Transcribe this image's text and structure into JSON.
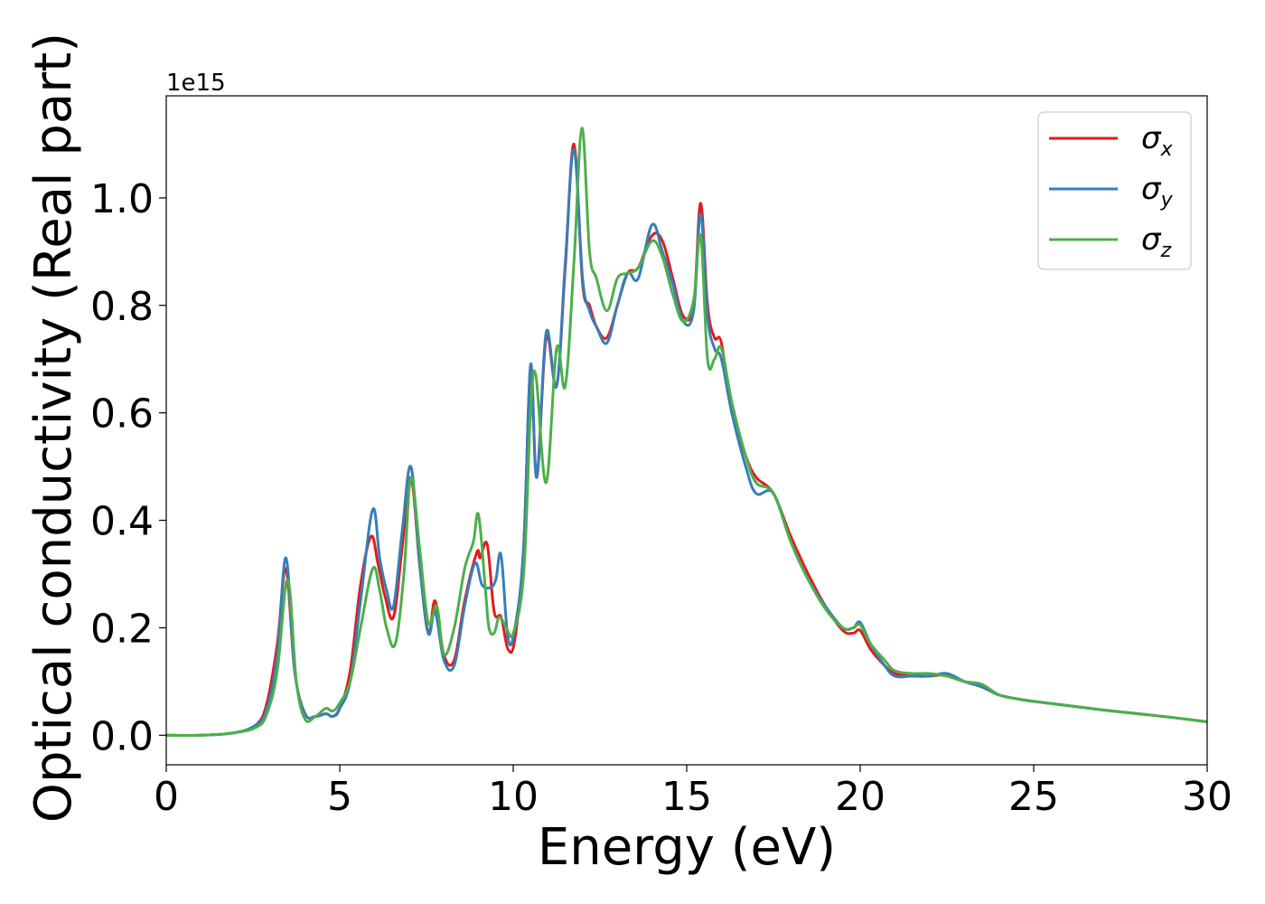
{
  "chart_data": {
    "type": "line",
    "xlabel": "Energy (eV)",
    "ylabel": "Optical conductivity (Real part)",
    "y_offset_label": "1e15",
    "xlim": [
      0,
      30
    ],
    "ylim": [
      -0.055,
      1.19
    ],
    "xticks": [
      0,
      5,
      10,
      15,
      20,
      25,
      30
    ],
    "yticks": [
      0.0,
      0.2,
      0.4,
      0.6,
      0.8,
      1.0
    ],
    "ytick_labels": [
      "0.0",
      "0.2",
      "0.4",
      "0.6",
      "0.8",
      "1.0"
    ],
    "grid": false,
    "legend_position": "top-right",
    "series": [
      {
        "name": "σx",
        "symbol": "σ",
        "subscript": "x",
        "color": "#e41a1c",
        "x": [
          0,
          1,
          2,
          2.6,
          2.9,
          3.2,
          3.45,
          3.7,
          4.0,
          4.3,
          4.6,
          4.8,
          5.0,
          5.3,
          5.6,
          5.9,
          6.1,
          6.3,
          6.55,
          6.8,
          7.05,
          7.3,
          7.55,
          7.75,
          8.0,
          8.3,
          8.6,
          8.95,
          9.05,
          9.25,
          9.45,
          9.65,
          9.85,
          10.05,
          10.3,
          10.5,
          10.68,
          10.95,
          11.25,
          11.5,
          11.75,
          12.0,
          12.2,
          12.4,
          12.7,
          13.0,
          13.3,
          13.6,
          14.0,
          14.3,
          14.6,
          14.9,
          15.2,
          15.4,
          15.6,
          15.8,
          16.0,
          16.3,
          16.7,
          17.0,
          17.5,
          18.0,
          18.5,
          19.0,
          19.5,
          19.8,
          20.0,
          20.3,
          20.7,
          21.0,
          21.5,
          22.0,
          22.5,
          23.0,
          23.5,
          24.0,
          24.5,
          25.0,
          26.0,
          27.0,
          28.0,
          29.0,
          30.0
        ],
        "values": [
          0,
          0,
          0.005,
          0.02,
          0.06,
          0.17,
          0.31,
          0.12,
          0.04,
          0.035,
          0.04,
          0.035,
          0.05,
          0.12,
          0.28,
          0.37,
          0.32,
          0.26,
          0.22,
          0.35,
          0.48,
          0.32,
          0.19,
          0.25,
          0.15,
          0.14,
          0.25,
          0.34,
          0.33,
          0.355,
          0.23,
          0.22,
          0.16,
          0.18,
          0.35,
          0.68,
          0.48,
          0.74,
          0.65,
          0.87,
          1.1,
          0.84,
          0.8,
          0.76,
          0.74,
          0.8,
          0.86,
          0.87,
          0.93,
          0.92,
          0.85,
          0.78,
          0.8,
          0.99,
          0.8,
          0.74,
          0.73,
          0.6,
          0.52,
          0.48,
          0.45,
          0.37,
          0.3,
          0.24,
          0.195,
          0.19,
          0.195,
          0.16,
          0.13,
          0.115,
          0.11,
          0.11,
          0.112,
          0.1,
          0.09,
          0.075,
          0.068,
          0.063,
          0.055,
          0.047,
          0.04,
          0.033,
          0.025
        ]
      },
      {
        "name": "σy",
        "symbol": "σ",
        "subscript": "y",
        "color": "#377eb8",
        "x": [
          0,
          1,
          2,
          2.6,
          2.9,
          3.2,
          3.45,
          3.7,
          4.0,
          4.3,
          4.6,
          4.8,
          5.0,
          5.3,
          5.6,
          5.95,
          6.15,
          6.35,
          6.55,
          6.8,
          7.05,
          7.3,
          7.55,
          7.75,
          8.0,
          8.3,
          8.6,
          8.9,
          9.1,
          9.35,
          9.5,
          9.65,
          9.85,
          10.05,
          10.3,
          10.5,
          10.68,
          10.95,
          11.25,
          11.5,
          11.75,
          12.0,
          12.2,
          12.4,
          12.7,
          13.0,
          13.3,
          13.6,
          14.0,
          14.3,
          14.6,
          14.9,
          15.2,
          15.4,
          15.6,
          15.8,
          16.0,
          16.3,
          16.7,
          17.0,
          17.5,
          18.0,
          18.5,
          19.0,
          19.5,
          19.8,
          20.0,
          20.3,
          20.7,
          21.0,
          21.5,
          22.0,
          22.5,
          23.0,
          23.5,
          24.0,
          24.5,
          25.0,
          26.0,
          27.0,
          28.0,
          29.0,
          30.0
        ],
        "values": [
          0,
          0,
          0.005,
          0.02,
          0.05,
          0.15,
          0.33,
          0.12,
          0.04,
          0.035,
          0.04,
          0.035,
          0.05,
          0.1,
          0.25,
          0.42,
          0.33,
          0.27,
          0.24,
          0.38,
          0.5,
          0.32,
          0.19,
          0.23,
          0.14,
          0.13,
          0.24,
          0.32,
          0.28,
          0.275,
          0.29,
          0.335,
          0.18,
          0.2,
          0.35,
          0.69,
          0.48,
          0.75,
          0.65,
          0.88,
          1.09,
          0.85,
          0.79,
          0.76,
          0.73,
          0.8,
          0.86,
          0.85,
          0.95,
          0.9,
          0.84,
          0.77,
          0.79,
          0.97,
          0.78,
          0.72,
          0.7,
          0.6,
          0.5,
          0.45,
          0.45,
          0.36,
          0.29,
          0.24,
          0.2,
          0.2,
          0.21,
          0.17,
          0.13,
          0.11,
          0.11,
          0.11,
          0.115,
          0.1,
          0.09,
          0.075,
          0.068,
          0.063,
          0.055,
          0.047,
          0.04,
          0.033,
          0.025
        ]
      },
      {
        "name": "σz",
        "symbol": "σ",
        "subscript": "z",
        "color": "#4daf4a",
        "x": [
          0,
          1,
          2,
          2.6,
          2.9,
          3.2,
          3.5,
          3.75,
          4.0,
          4.3,
          4.6,
          4.8,
          5.0,
          5.3,
          5.6,
          5.95,
          6.15,
          6.35,
          6.6,
          6.85,
          7.05,
          7.3,
          7.55,
          7.8,
          8.0,
          8.3,
          8.6,
          8.85,
          9.0,
          9.2,
          9.3,
          9.45,
          9.6,
          9.8,
          10.0,
          10.3,
          10.5,
          10.65,
          10.95,
          11.25,
          11.5,
          11.75,
          11.98,
          12.2,
          12.4,
          12.7,
          13.0,
          13.3,
          13.6,
          14.0,
          14.3,
          14.6,
          14.9,
          15.2,
          15.4,
          15.6,
          15.8,
          16.0,
          16.3,
          16.7,
          17.0,
          17.5,
          18.0,
          18.5,
          19.0,
          19.5,
          19.8,
          20.0,
          20.3,
          20.7,
          21.0,
          21.5,
          22.0,
          22.5,
          23.0,
          23.5,
          24.0,
          24.5,
          25.0,
          26.0,
          27.0,
          28.0,
          29.0,
          30.0
        ],
        "values": [
          0,
          0,
          0.005,
          0.015,
          0.04,
          0.12,
          0.29,
          0.1,
          0.03,
          0.035,
          0.05,
          0.045,
          0.06,
          0.1,
          0.2,
          0.31,
          0.27,
          0.2,
          0.17,
          0.3,
          0.48,
          0.35,
          0.21,
          0.24,
          0.15,
          0.2,
          0.31,
          0.36,
          0.41,
          0.27,
          0.2,
          0.19,
          0.22,
          0.2,
          0.19,
          0.3,
          0.6,
          0.67,
          0.47,
          0.72,
          0.65,
          0.88,
          1.13,
          0.9,
          0.85,
          0.79,
          0.85,
          0.86,
          0.87,
          0.92,
          0.89,
          0.82,
          0.77,
          0.81,
          0.93,
          0.7,
          0.7,
          0.72,
          0.62,
          0.52,
          0.47,
          0.45,
          0.36,
          0.29,
          0.235,
          0.2,
          0.2,
          0.205,
          0.17,
          0.14,
          0.12,
          0.115,
          0.115,
          0.11,
          0.1,
          0.095,
          0.075,
          0.068,
          0.063,
          0.055,
          0.047,
          0.04,
          0.033,
          0.025
        ]
      }
    ]
  }
}
